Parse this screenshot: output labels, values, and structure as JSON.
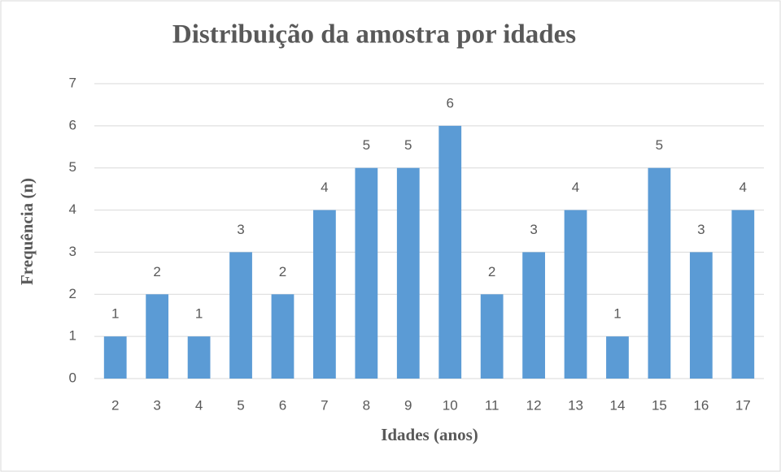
{
  "chart_data": {
    "type": "bar",
    "title": "Distribuição da amostra por idades",
    "x_label": "Idades (anos)",
    "y_label": "Frequência (n)",
    "categories": [
      "2",
      "3",
      "4",
      "5",
      "6",
      "7",
      "8",
      "9",
      "10",
      "11",
      "12",
      "13",
      "14",
      "15",
      "16",
      "17"
    ],
    "values": [
      1,
      2,
      1,
      3,
      2,
      4,
      5,
      5,
      6,
      2,
      3,
      4,
      1,
      5,
      3,
      4
    ],
    "color": "#5b9bd5",
    "ylim": [
      0,
      7
    ],
    "yticks": [
      0,
      1,
      2,
      3,
      4,
      5,
      6,
      7
    ],
    "grid": true
  }
}
